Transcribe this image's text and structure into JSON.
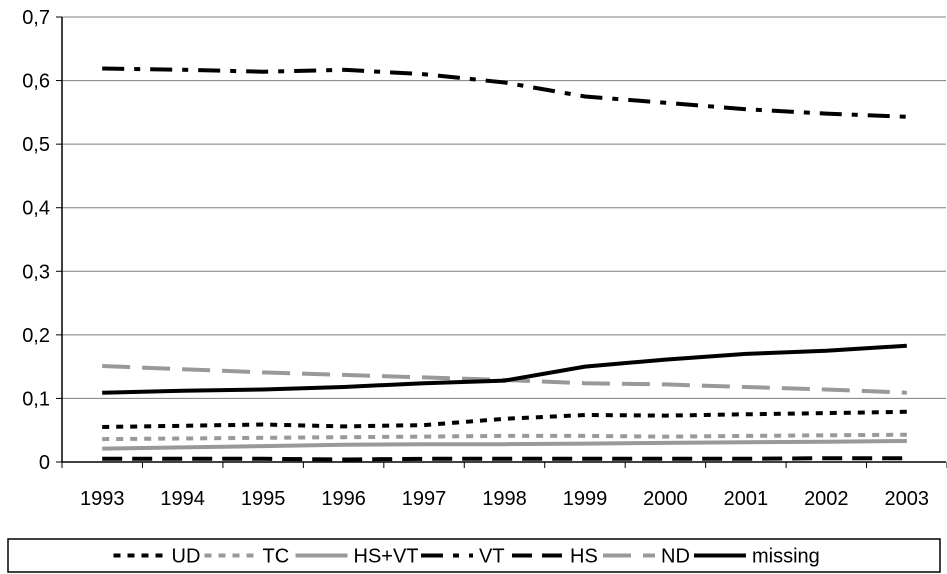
{
  "chart_data": {
    "type": "line",
    "categories": [
      "1993",
      "1994",
      "1995",
      "1996",
      "1997",
      "1998",
      "1999",
      "2000",
      "2001",
      "2002",
      "2003"
    ],
    "ylim": [
      0,
      0.7
    ],
    "y_ticks": [
      {
        "value": 0,
        "label": "0"
      },
      {
        "value": 0.1,
        "label": "0,1"
      },
      {
        "value": 0.2,
        "label": "0,2"
      },
      {
        "value": 0.3,
        "label": "0,3"
      },
      {
        "value": 0.4,
        "label": "0,4"
      },
      {
        "value": 0.5,
        "label": "0,5"
      },
      {
        "value": 0.6,
        "label": "0,6"
      },
      {
        "value": 0.7,
        "label": "0,7"
      }
    ],
    "grid": "horizontal",
    "legend_position": "bottom",
    "series": [
      {
        "name": "UD",
        "color": "#000000",
        "style": "dotted",
        "values": [
          0.055,
          0.057,
          0.059,
          0.056,
          0.058,
          0.068,
          0.074,
          0.073,
          0.075,
          0.077,
          0.079
        ]
      },
      {
        "name": "TC",
        "color": "#999999",
        "style": "dotted",
        "values": [
          0.036,
          0.037,
          0.038,
          0.039,
          0.04,
          0.041,
          0.041,
          0.04,
          0.041,
          0.042,
          0.043
        ]
      },
      {
        "name": "HS+VT",
        "color": "#999999",
        "style": "solid",
        "values": [
          0.021,
          0.023,
          0.025,
          0.027,
          0.028,
          0.028,
          0.029,
          0.03,
          0.031,
          0.032,
          0.033
        ]
      },
      {
        "name": "VT",
        "color": "#000000",
        "style": "dashdot",
        "values": [
          0.619,
          0.617,
          0.614,
          0.617,
          0.61,
          0.597,
          0.575,
          0.565,
          0.555,
          0.548,
          0.543
        ]
      },
      {
        "name": "HS",
        "color": "#000000",
        "style": "dashed",
        "values": [
          0.005,
          0.005,
          0.005,
          0.004,
          0.005,
          0.005,
          0.005,
          0.005,
          0.005,
          0.006,
          0.006
        ]
      },
      {
        "name": "ND",
        "color": "#999999",
        "style": "longdash",
        "values": [
          0.151,
          0.146,
          0.141,
          0.137,
          0.133,
          0.129,
          0.124,
          0.122,
          0.118,
          0.114,
          0.109
        ]
      },
      {
        "name": "missing",
        "color": "#000000",
        "style": "solid",
        "values": [
          0.109,
          0.112,
          0.114,
          0.118,
          0.124,
          0.128,
          0.15,
          0.161,
          0.17,
          0.175,
          0.183
        ]
      }
    ]
  }
}
